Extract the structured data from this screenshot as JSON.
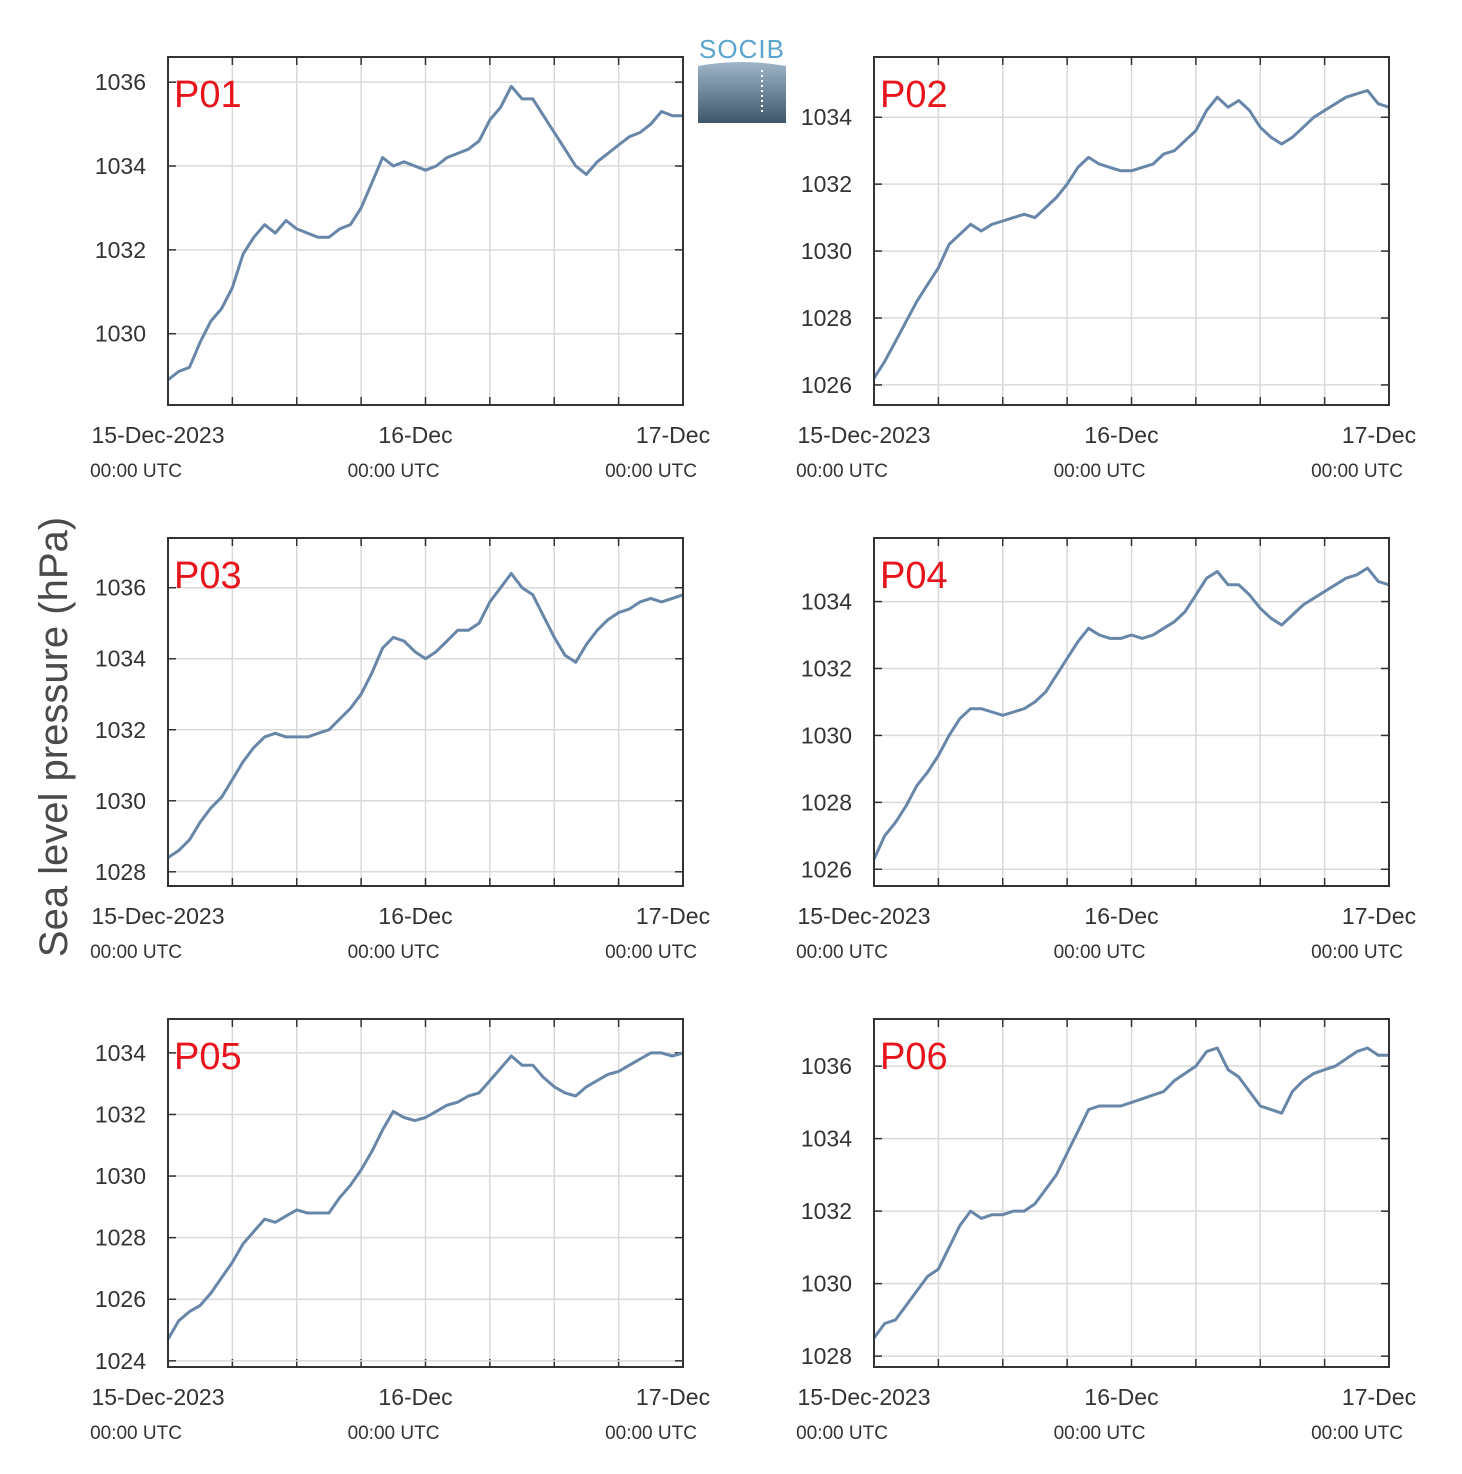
{
  "figure": {
    "ylabel": "Sea level pressure (hPa)",
    "logo_text": "SOCIB",
    "colors": {
      "series": "#6786a8",
      "panel_label": "#e8141c",
      "grid": "#d9d9d9",
      "axis": "#333333"
    }
  },
  "chart_data": [
    {
      "type": "line",
      "panel_label": "P01",
      "xlabel": "",
      "x_ticks": [
        {
          "main": "15-Dec-2023",
          "sub": "00:00 UTC",
          "hour": 0
        },
        {
          "main": "16-Dec",
          "sub": "00:00 UTC",
          "hour": 24
        },
        {
          "main": "17-Dec",
          "sub": "00:00 UTC",
          "hour": 48
        }
      ],
      "xlim": [
        0,
        48
      ],
      "ylim": [
        1028.3,
        1036.6
      ],
      "y_ticks": [
        1030,
        1032,
        1034,
        1036
      ],
      "grid": true,
      "series": [
        {
          "x": [
            0,
            1,
            2,
            3,
            4,
            5,
            6,
            7,
            8,
            9,
            10,
            11,
            12,
            13,
            14,
            15,
            16,
            17,
            18,
            19,
            20,
            21,
            22,
            23,
            24,
            25,
            26,
            27,
            28,
            29,
            30,
            31,
            32,
            33,
            34,
            35,
            36,
            37,
            38,
            39,
            40,
            41,
            42,
            43,
            44,
            45,
            46,
            47,
            48
          ],
          "y": [
            1028.9,
            1029.1,
            1029.2,
            1029.8,
            1030.3,
            1030.6,
            1031.1,
            1031.9,
            1032.3,
            1032.6,
            1032.4,
            1032.7,
            1032.5,
            1032.4,
            1032.3,
            1032.3,
            1032.5,
            1032.6,
            1033.0,
            1033.6,
            1034.2,
            1034.0,
            1034.1,
            1034.0,
            1033.9,
            1034.0,
            1034.2,
            1034.3,
            1034.4,
            1034.6,
            1035.1,
            1035.4,
            1035.9,
            1035.6,
            1035.6,
            1035.2,
            1034.8,
            1034.4,
            1034.0,
            1033.8,
            1034.1,
            1034.3,
            1034.5,
            1034.7,
            1034.8,
            1035.0,
            1035.3,
            1035.2,
            1035.2
          ]
        }
      ]
    },
    {
      "type": "line",
      "panel_label": "P02",
      "xlabel": "",
      "x_ticks": [
        {
          "main": "15-Dec-2023",
          "sub": "00:00 UTC",
          "hour": 0
        },
        {
          "main": "16-Dec",
          "sub": "00:00 UTC",
          "hour": 24
        },
        {
          "main": "17-Dec",
          "sub": "00:00 UTC",
          "hour": 48
        }
      ],
      "xlim": [
        0,
        48
      ],
      "ylim": [
        1025.4,
        1035.8
      ],
      "y_ticks": [
        1026,
        1028,
        1030,
        1032,
        1034
      ],
      "grid": true,
      "series": [
        {
          "x": [
            0,
            1,
            2,
            3,
            4,
            5,
            6,
            7,
            8,
            9,
            10,
            11,
            12,
            13,
            14,
            15,
            16,
            17,
            18,
            19,
            20,
            21,
            22,
            23,
            24,
            25,
            26,
            27,
            28,
            29,
            30,
            31,
            32,
            33,
            34,
            35,
            36,
            37,
            38,
            39,
            40,
            41,
            42,
            43,
            44,
            45,
            46,
            47,
            48
          ],
          "y": [
            1026.2,
            1026.7,
            1027.3,
            1027.9,
            1028.5,
            1029.0,
            1029.5,
            1030.2,
            1030.5,
            1030.8,
            1030.6,
            1030.8,
            1030.9,
            1031.0,
            1031.1,
            1031.0,
            1031.3,
            1031.6,
            1032.0,
            1032.5,
            1032.8,
            1032.6,
            1032.5,
            1032.4,
            1032.4,
            1032.5,
            1032.6,
            1032.9,
            1033.0,
            1033.3,
            1033.6,
            1034.2,
            1034.6,
            1034.3,
            1034.5,
            1034.2,
            1033.7,
            1033.4,
            1033.2,
            1033.4,
            1033.7,
            1034.0,
            1034.2,
            1034.4,
            1034.6,
            1034.7,
            1034.8,
            1034.4,
            1034.3
          ]
        }
      ]
    },
    {
      "type": "line",
      "panel_label": "P03",
      "xlabel": "",
      "x_ticks": [
        {
          "main": "15-Dec-2023",
          "sub": "00:00 UTC",
          "hour": 0
        },
        {
          "main": "16-Dec",
          "sub": "00:00 UTC",
          "hour": 24
        },
        {
          "main": "17-Dec",
          "sub": "00:00 UTC",
          "hour": 48
        }
      ],
      "xlim": [
        0,
        48
      ],
      "ylim": [
        1027.6,
        1037.4
      ],
      "y_ticks": [
        1028,
        1030,
        1032,
        1034,
        1036
      ],
      "grid": true,
      "series": [
        {
          "x": [
            0,
            1,
            2,
            3,
            4,
            5,
            6,
            7,
            8,
            9,
            10,
            11,
            12,
            13,
            14,
            15,
            16,
            17,
            18,
            19,
            20,
            21,
            22,
            23,
            24,
            25,
            26,
            27,
            28,
            29,
            30,
            31,
            32,
            33,
            34,
            35,
            36,
            37,
            38,
            39,
            40,
            41,
            42,
            43,
            44,
            45,
            46,
            47,
            48
          ],
          "y": [
            1028.4,
            1028.6,
            1028.9,
            1029.4,
            1029.8,
            1030.1,
            1030.6,
            1031.1,
            1031.5,
            1031.8,
            1031.9,
            1031.8,
            1031.8,
            1031.8,
            1031.9,
            1032.0,
            1032.3,
            1032.6,
            1033.0,
            1033.6,
            1034.3,
            1034.6,
            1034.5,
            1034.2,
            1034.0,
            1034.2,
            1034.5,
            1034.8,
            1034.8,
            1035.0,
            1035.6,
            1036.0,
            1036.4,
            1036.0,
            1035.8,
            1035.2,
            1034.6,
            1034.1,
            1033.9,
            1034.4,
            1034.8,
            1035.1,
            1035.3,
            1035.4,
            1035.6,
            1035.7,
            1035.6,
            1035.7,
            1035.8
          ]
        }
      ]
    },
    {
      "type": "line",
      "panel_label": "P04",
      "xlabel": "",
      "x_ticks": [
        {
          "main": "15-Dec-2023",
          "sub": "00:00 UTC",
          "hour": 0
        },
        {
          "main": "16-Dec",
          "sub": "00:00 UTC",
          "hour": 24
        },
        {
          "main": "17-Dec",
          "sub": "00:00 UTC",
          "hour": 48
        }
      ],
      "xlim": [
        0,
        48
      ],
      "ylim": [
        1025.5,
        1035.9
      ],
      "y_ticks": [
        1026,
        1028,
        1030,
        1032,
        1034
      ],
      "grid": true,
      "series": [
        {
          "x": [
            0,
            1,
            2,
            3,
            4,
            5,
            6,
            7,
            8,
            9,
            10,
            11,
            12,
            13,
            14,
            15,
            16,
            17,
            18,
            19,
            20,
            21,
            22,
            23,
            24,
            25,
            26,
            27,
            28,
            29,
            30,
            31,
            32,
            33,
            34,
            35,
            36,
            37,
            38,
            39,
            40,
            41,
            42,
            43,
            44,
            45,
            46,
            47,
            48
          ],
          "y": [
            1026.3,
            1027.0,
            1027.4,
            1027.9,
            1028.5,
            1028.9,
            1029.4,
            1030.0,
            1030.5,
            1030.8,
            1030.8,
            1030.7,
            1030.6,
            1030.7,
            1030.8,
            1031.0,
            1031.3,
            1031.8,
            1032.3,
            1032.8,
            1033.2,
            1033.0,
            1032.9,
            1032.9,
            1033.0,
            1032.9,
            1033.0,
            1033.2,
            1033.4,
            1033.7,
            1034.2,
            1034.7,
            1034.9,
            1034.5,
            1034.5,
            1034.2,
            1033.8,
            1033.5,
            1033.3,
            1033.6,
            1033.9,
            1034.1,
            1034.3,
            1034.5,
            1034.7,
            1034.8,
            1035.0,
            1034.6,
            1034.5
          ]
        }
      ]
    },
    {
      "type": "line",
      "panel_label": "P05",
      "xlabel": "",
      "x_ticks": [
        {
          "main": "15-Dec-2023",
          "sub": "00:00 UTC",
          "hour": 0
        },
        {
          "main": "16-Dec",
          "sub": "00:00 UTC",
          "hour": 24
        },
        {
          "main": "17-Dec",
          "sub": "00:00 UTC",
          "hour": 48
        }
      ],
      "xlim": [
        0,
        48
      ],
      "ylim": [
        1023.8,
        1035.1
      ],
      "y_ticks": [
        1024,
        1026,
        1028,
        1030,
        1032,
        1034
      ],
      "grid": true,
      "series": [
        {
          "x": [
            0,
            1,
            2,
            3,
            4,
            5,
            6,
            7,
            8,
            9,
            10,
            11,
            12,
            13,
            14,
            15,
            16,
            17,
            18,
            19,
            20,
            21,
            22,
            23,
            24,
            25,
            26,
            27,
            28,
            29,
            30,
            31,
            32,
            33,
            34,
            35,
            36,
            37,
            38,
            39,
            40,
            41,
            42,
            43,
            44,
            45,
            46,
            47,
            48
          ],
          "y": [
            1024.7,
            1025.3,
            1025.6,
            1025.8,
            1026.2,
            1026.7,
            1027.2,
            1027.8,
            1028.2,
            1028.6,
            1028.5,
            1028.7,
            1028.9,
            1028.8,
            1028.8,
            1028.8,
            1029.3,
            1029.7,
            1030.2,
            1030.8,
            1031.5,
            1032.1,
            1031.9,
            1031.8,
            1031.9,
            1032.1,
            1032.3,
            1032.4,
            1032.6,
            1032.7,
            1033.1,
            1033.5,
            1033.9,
            1033.6,
            1033.6,
            1033.2,
            1032.9,
            1032.7,
            1032.6,
            1032.9,
            1033.1,
            1033.3,
            1033.4,
            1033.6,
            1033.8,
            1034.0,
            1034.0,
            1033.9,
            1034.0
          ]
        }
      ]
    },
    {
      "type": "line",
      "panel_label": "P06",
      "xlabel": "",
      "x_ticks": [
        {
          "main": "15-Dec-2023",
          "sub": "00:00 UTC",
          "hour": 0
        },
        {
          "main": "16-Dec",
          "sub": "00:00 UTC",
          "hour": 24
        },
        {
          "main": "17-Dec",
          "sub": "00:00 UTC",
          "hour": 48
        }
      ],
      "xlim": [
        0,
        48
      ],
      "ylim": [
        1027.7,
        1037.3
      ],
      "y_ticks": [
        1028,
        1030,
        1032,
        1034,
        1036
      ],
      "grid": true,
      "series": [
        {
          "x": [
            0,
            1,
            2,
            3,
            4,
            5,
            6,
            7,
            8,
            9,
            10,
            11,
            12,
            13,
            14,
            15,
            16,
            17,
            18,
            19,
            20,
            21,
            22,
            23,
            24,
            25,
            26,
            27,
            28,
            29,
            30,
            31,
            32,
            33,
            34,
            35,
            36,
            37,
            38,
            39,
            40,
            41,
            42,
            43,
            44,
            45,
            46,
            47,
            48
          ],
          "y": [
            1028.5,
            1028.9,
            1029.0,
            1029.4,
            1029.8,
            1030.2,
            1030.4,
            1031.0,
            1031.6,
            1032.0,
            1031.8,
            1031.9,
            1031.9,
            1032.0,
            1032.0,
            1032.2,
            1032.6,
            1033.0,
            1033.6,
            1034.2,
            1034.8,
            1034.9,
            1034.9,
            1034.9,
            1035.0,
            1035.1,
            1035.2,
            1035.3,
            1035.6,
            1035.8,
            1036.0,
            1036.4,
            1036.5,
            1035.9,
            1035.7,
            1035.3,
            1034.9,
            1034.8,
            1034.7,
            1035.3,
            1035.6,
            1035.8,
            1035.9,
            1036.0,
            1036.2,
            1036.4,
            1036.5,
            1036.3,
            1036.3
          ]
        }
      ]
    }
  ]
}
